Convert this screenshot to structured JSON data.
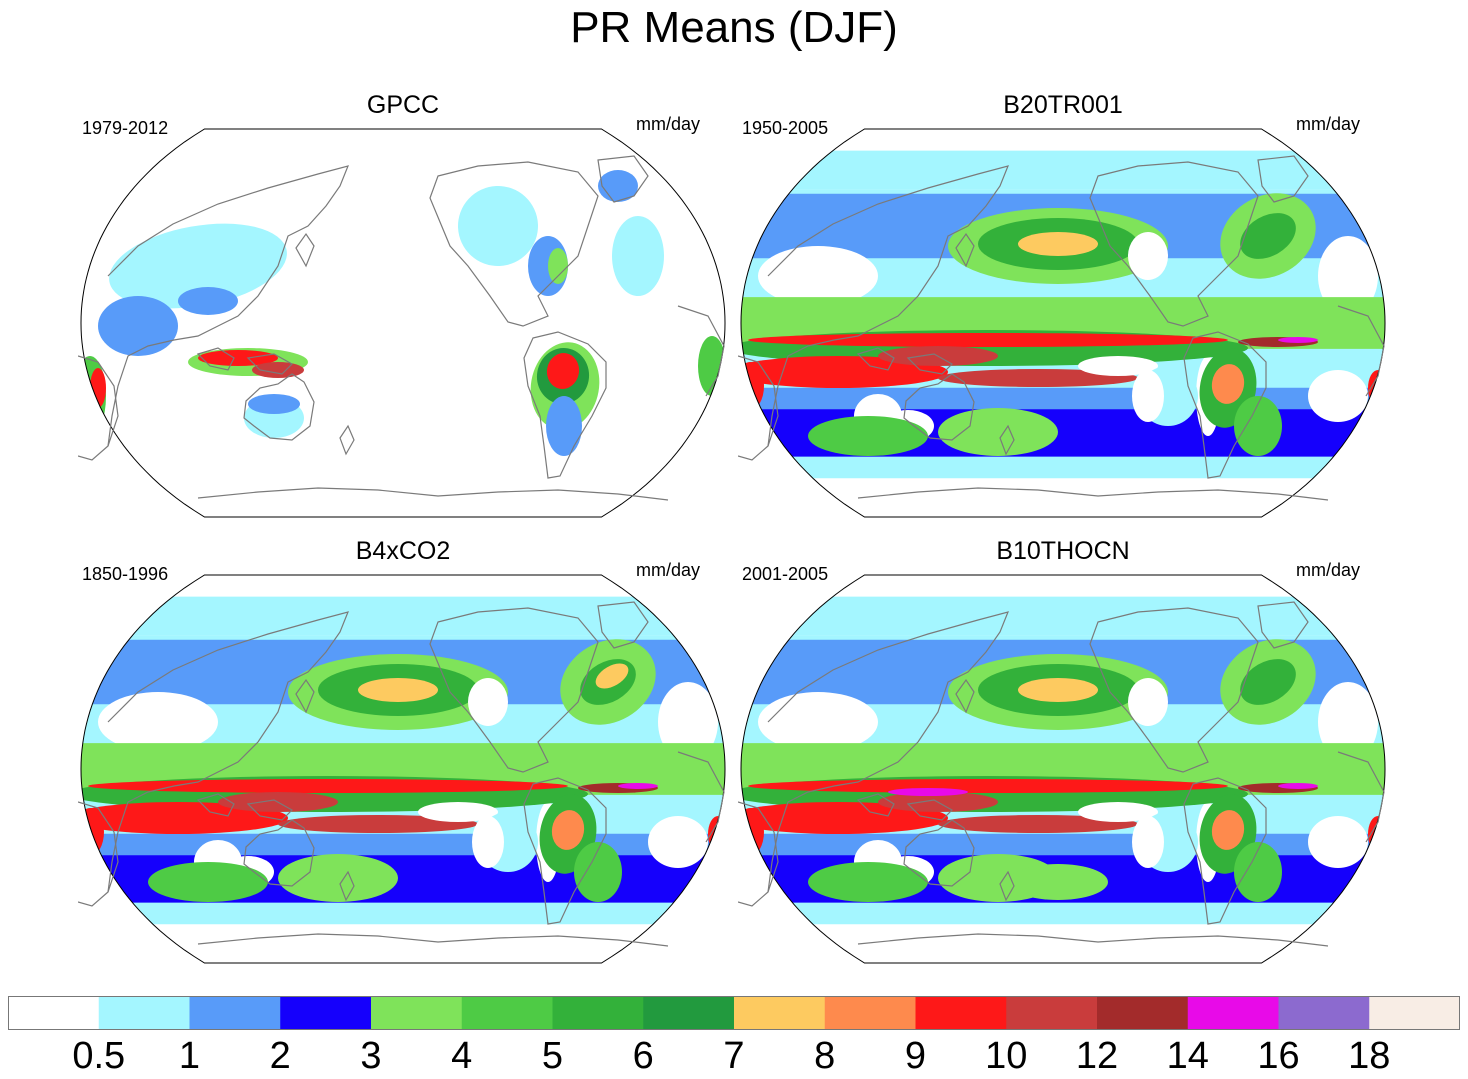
{
  "title": "PR Means (DJF)",
  "units_label": "mm/day",
  "panels": [
    {
      "title": "GPCC",
      "period": "1979-2012",
      "style": "obs"
    },
    {
      "title": "B20TR001",
      "period": "1950-2005",
      "style": "model"
    },
    {
      "title": "B4xCO2",
      "period": "1850-1996",
      "style": "model"
    },
    {
      "title": "B10THOCN",
      "period": "2001-2005",
      "style": "model"
    }
  ],
  "colorbar": {
    "colors": [
      "#ffffff",
      "#a4f6ff",
      "#589bf9",
      "#1500fc",
      "#7fe35a",
      "#4ecb45",
      "#33b13a",
      "#229a3e",
      "#fdca60",
      "#fe8a4d",
      "#fe1818",
      "#c93c3c",
      "#a32b2b",
      "#e80ae8",
      "#8c6acf",
      "#f8ede5"
    ],
    "levels": [
      "0.5",
      "1",
      "2",
      "3",
      "4",
      "5",
      "6",
      "7",
      "8",
      "9",
      "10",
      "12",
      "14",
      "16",
      "18"
    ]
  }
}
